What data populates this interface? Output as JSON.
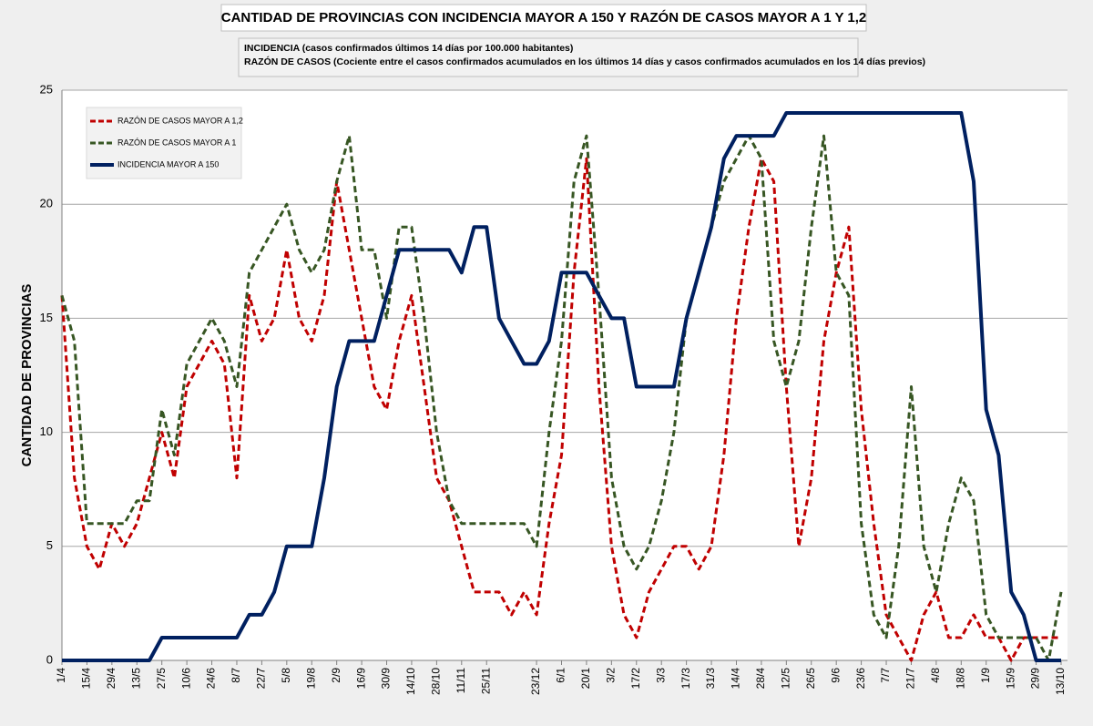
{
  "chart_data": {
    "type": "line",
    "title": "CANTIDAD DE PROVINCIAS CON INCIDENCIA MAYOR A 150 Y RAZÓN DE CASOS MAYOR A 1 Y 1,2",
    "annotations": [
      "INCIDENCIA (casos confirmados últimos 14 días por 100.000  habitantes)",
      "RAZÓN DE CASOS (Cociente entre el casos confirmados acumulados en los últimos 14 días y casos confirmados acumulados en los 14 días previos)"
    ],
    "y_label": "CANTIDAD DE PROVINCIAS",
    "categories": [
      "1/4",
      null,
      "15/4",
      null,
      "29/4",
      null,
      "13/5",
      null,
      "27/5",
      null,
      "10/6",
      null,
      "24/6",
      null,
      "8/7",
      null,
      "22/7",
      null,
      "5/8",
      null,
      "19/8",
      null,
      "2/9",
      null,
      "16/9",
      null,
      "30/9",
      null,
      "14/10",
      null,
      "28/10",
      null,
      "11/11",
      null,
      "25/11",
      null,
      null,
      null,
      "23/12",
      null,
      "6/1",
      null,
      "20/1",
      null,
      "3/2",
      null,
      "17/2",
      null,
      "3/3",
      null,
      "17/3",
      null,
      "31/3",
      null,
      "14/4",
      null,
      "28/4",
      null,
      "12/5",
      null,
      "26/5",
      null,
      "9/6",
      null,
      "23/6",
      null,
      "7/7",
      null,
      "21/7",
      null,
      "4/8",
      null,
      "18/8",
      null,
      "1/9",
      null,
      "15/9",
      null,
      "29/9",
      null,
      "13/10"
    ],
    "series": [
      {
        "name": "RAZÓN DE CASOS MAYOR A 1,2",
        "color": "#c00000",
        "dashed": true,
        "values": [
          16,
          8,
          5,
          4,
          6,
          5,
          6,
          8,
          10,
          8,
          12,
          13,
          14,
          13,
          8,
          16,
          14,
          15,
          18,
          15,
          14,
          16,
          21,
          18,
          15,
          12,
          11,
          14,
          16,
          12,
          8,
          7,
          5,
          3,
          3,
          3,
          2,
          3,
          2,
          6,
          9,
          17,
          22,
          12,
          5,
          2,
          1,
          3,
          4,
          5,
          5,
          4,
          5,
          9,
          15,
          19,
          22,
          21,
          12,
          5,
          8,
          14,
          17,
          19,
          11,
          6,
          2,
          1,
          0,
          2,
          3,
          1,
          1,
          2,
          1,
          1,
          0,
          1,
          1,
          1,
          1
        ]
      },
      {
        "name": "RAZÓN DE CASOS MAYOR A 1",
        "color": "#375623",
        "dashed": true,
        "values": [
          16,
          14,
          6,
          6,
          6,
          6,
          7,
          7,
          11,
          9,
          13,
          14,
          15,
          14,
          12,
          17,
          18,
          19,
          20,
          18,
          17,
          18,
          21,
          23,
          18,
          18,
          15,
          19,
          19,
          15,
          10,
          7,
          6,
          6,
          6,
          6,
          6,
          6,
          5,
          10,
          14,
          21,
          23,
          16,
          8,
          5,
          4,
          5,
          7,
          10,
          15,
          17,
          19,
          21,
          22,
          23,
          22,
          14,
          12,
          14,
          19,
          23,
          17,
          16,
          6,
          2,
          1,
          5,
          12,
          5,
          3,
          6,
          8,
          7,
          2,
          1,
          1,
          1,
          1,
          0,
          3
        ]
      },
      {
        "name": "INCIDENCIA MAYOR A 150",
        "color": "#002060",
        "dashed": false,
        "values": [
          0,
          0,
          0,
          0,
          0,
          0,
          0,
          0,
          1,
          1,
          1,
          1,
          1,
          1,
          1,
          2,
          2,
          3,
          5,
          5,
          5,
          8,
          12,
          14,
          14,
          14,
          16,
          18,
          18,
          18,
          18,
          18,
          17,
          19,
          19,
          15,
          14,
          13,
          13,
          14,
          17,
          17,
          17,
          16,
          15,
          15,
          12,
          12,
          12,
          12,
          15,
          17,
          19,
          22,
          23,
          23,
          23,
          23,
          24,
          24,
          24,
          24,
          24,
          24,
          24,
          24,
          24,
          24,
          24,
          24,
          24,
          24,
          24,
          21,
          11,
          9,
          3,
          2,
          0,
          0,
          0
        ]
      }
    ],
    "ylim": [
      0,
      25
    ],
    "yticks": [
      0,
      5,
      10,
      15,
      20,
      25
    ],
    "grid": true,
    "legend": "top-left"
  }
}
